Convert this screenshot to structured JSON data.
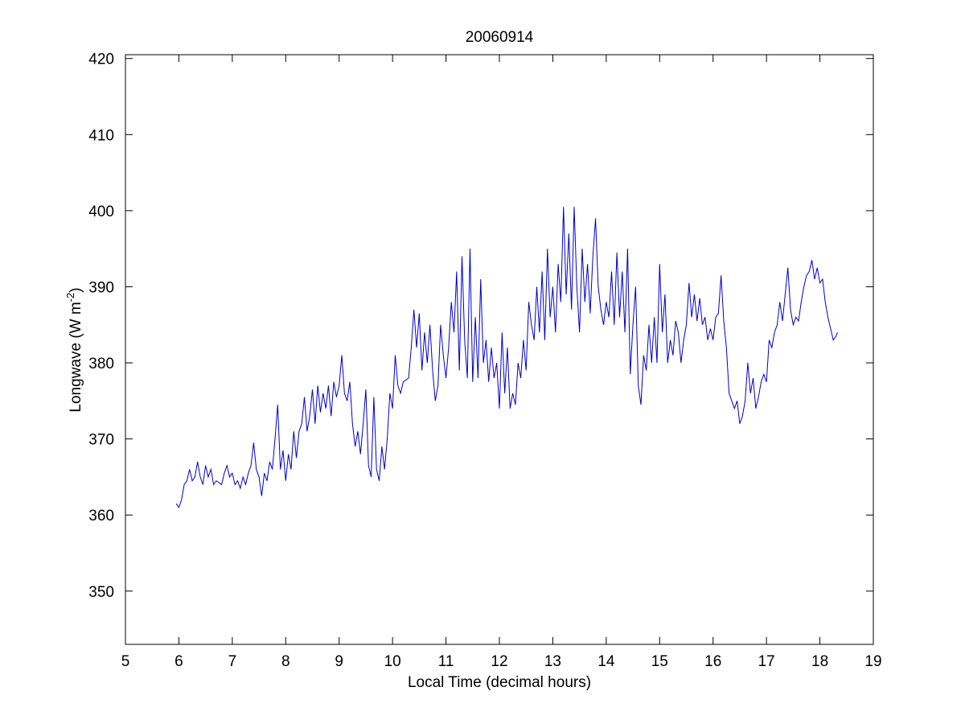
{
  "chart_data": {
    "type": "line",
    "title": "20060914",
    "xlabel": "Local Time (decimal hours)",
    "ylabel": {
      "text": "Longwave (W m",
      "superscript": "-2",
      "suffix": ")"
    },
    "xlim": [
      5,
      19
    ],
    "ylim": [
      343,
      420.5
    ],
    "xticks": [
      5,
      6,
      7,
      8,
      9,
      10,
      11,
      12,
      13,
      14,
      15,
      16,
      17,
      18,
      19
    ],
    "yticks": [
      350,
      360,
      370,
      380,
      390,
      400,
      410,
      420
    ],
    "grid": false,
    "x": [
      5.95,
      6.0,
      6.05,
      6.1,
      6.15,
      6.2,
      6.25,
      6.3,
      6.35,
      6.4,
      6.45,
      6.5,
      6.55,
      6.6,
      6.65,
      6.7,
      6.8,
      6.85,
      6.9,
      6.95,
      7.0,
      7.05,
      7.1,
      7.15,
      7.2,
      7.25,
      7.3,
      7.35,
      7.4,
      7.45,
      7.5,
      7.55,
      7.6,
      7.65,
      7.7,
      7.75,
      7.8,
      7.85,
      7.9,
      7.95,
      8.0,
      8.05,
      8.1,
      8.15,
      8.2,
      8.25,
      8.3,
      8.35,
      8.4,
      8.45,
      8.5,
      8.55,
      8.6,
      8.65,
      8.7,
      8.75,
      8.8,
      8.85,
      8.9,
      8.95,
      9.0,
      9.05,
      9.1,
      9.15,
      9.2,
      9.25,
      9.3,
      9.35,
      9.4,
      9.45,
      9.5,
      9.55,
      9.6,
      9.65,
      9.7,
      9.75,
      9.8,
      9.85,
      9.9,
      9.95,
      10.0,
      10.05,
      10.1,
      10.15,
      10.2,
      10.3,
      10.35,
      10.4,
      10.45,
      10.5,
      10.55,
      10.6,
      10.65,
      10.7,
      10.75,
      10.8,
      10.85,
      10.9,
      10.95,
      11.0,
      11.05,
      11.1,
      11.15,
      11.2,
      11.25,
      11.3,
      11.35,
      11.4,
      11.45,
      11.5,
      11.55,
      11.6,
      11.65,
      11.7,
      11.75,
      11.8,
      11.85,
      11.9,
      11.95,
      12.0,
      12.05,
      12.1,
      12.15,
      12.2,
      12.25,
      12.3,
      12.35,
      12.4,
      12.45,
      12.5,
      12.55,
      12.6,
      12.65,
      12.7,
      12.75,
      12.8,
      12.85,
      12.9,
      12.95,
      13.0,
      13.05,
      13.1,
      13.15,
      13.2,
      13.25,
      13.3,
      13.35,
      13.4,
      13.45,
      13.5,
      13.55,
      13.6,
      13.65,
      13.7,
      13.75,
      13.8,
      13.85,
      13.9,
      13.95,
      14.0,
      14.05,
      14.1,
      14.15,
      14.2,
      14.25,
      14.3,
      14.35,
      14.4,
      14.45,
      14.5,
      14.55,
      14.6,
      14.65,
      14.7,
      14.75,
      14.8,
      14.85,
      14.9,
      14.95,
      15.0,
      15.05,
      15.1,
      15.15,
      15.2,
      15.25,
      15.3,
      15.35,
      15.4,
      15.45,
      15.5,
      15.55,
      15.6,
      15.65,
      15.7,
      15.75,
      15.8,
      15.85,
      15.9,
      15.95,
      16.0,
      16.05,
      16.1,
      16.15,
      16.2,
      16.25,
      16.3,
      16.35,
      16.4,
      16.45,
      16.5,
      16.55,
      16.6,
      16.65,
      16.7,
      16.75,
      16.8,
      16.85,
      16.9,
      16.95,
      17.0,
      17.05,
      17.1,
      17.15,
      17.2,
      17.25,
      17.3,
      17.35,
      17.4,
      17.45,
      17.5,
      17.55,
      17.6,
      17.65,
      17.7,
      17.75,
      17.8,
      17.85,
      17.9,
      17.95,
      18.0,
      18.05,
      18.1,
      18.15,
      18.2,
      18.25,
      18.3,
      18.33
    ],
    "series": [
      {
        "color": "#0000cc",
        "values": [
          361.5,
          361,
          362,
          364,
          364.5,
          366,
          364.5,
          365,
          367,
          365,
          364,
          366.5,
          365,
          366,
          364,
          364.5,
          364,
          365.5,
          366.5,
          365,
          365.5,
          364,
          364.5,
          363.5,
          365,
          364,
          365.5,
          366.5,
          369.5,
          366,
          365,
          362.5,
          365.5,
          364.5,
          367,
          366,
          370,
          374.5,
          366,
          368.5,
          364.5,
          368,
          366,
          371,
          367.5,
          371,
          372,
          375.5,
          371,
          373,
          376.5,
          372,
          377,
          373.5,
          376,
          374,
          377,
          373,
          377.5,
          375.5,
          377,
          381,
          376,
          375,
          377.5,
          372,
          369,
          371,
          368,
          372,
          376.5,
          366.5,
          365,
          375.5,
          366,
          364.5,
          369,
          366,
          370,
          376,
          374,
          381,
          377,
          376,
          377.5,
          378,
          382,
          387,
          382,
          386.5,
          379,
          384,
          380,
          385,
          379,
          375,
          377,
          385,
          381,
          378,
          382,
          388,
          384,
          392,
          379,
          394,
          383,
          378,
          395,
          377.5,
          386,
          378,
          391,
          380,
          383,
          377.5,
          382,
          378,
          380,
          374,
          384,
          376,
          382,
          374,
          376,
          374.5,
          380,
          378,
          383,
          379,
          388,
          385,
          383,
          390,
          384,
          392,
          383,
          395,
          386,
          390,
          384,
          393,
          388,
          400.5,
          389,
          397,
          387,
          400.5,
          390,
          384,
          395,
          388,
          393,
          386.5,
          394,
          399,
          390,
          387,
          385,
          388,
          386,
          392,
          385,
          394.5,
          386,
          392,
          384,
          395,
          378.5,
          385,
          390,
          377,
          374.5,
          381,
          379,
          385,
          380,
          386,
          380,
          393,
          384,
          389,
          380,
          383,
          381,
          385.5,
          384,
          380,
          383,
          385,
          390.5,
          386,
          389,
          385.5,
          388.5,
          385,
          386,
          383,
          384.5,
          383,
          386,
          386.5,
          391.5,
          385.5,
          382,
          376,
          375,
          374,
          375,
          372,
          373,
          375,
          380,
          376,
          378,
          374,
          375.5,
          377.5,
          378.5,
          377.5,
          383,
          382,
          384,
          385,
          388,
          385.5,
          389,
          392.5,
          387,
          385,
          386,
          385.5,
          388,
          390,
          391.5,
          392,
          393.5,
          391,
          392.5,
          390.5,
          391,
          388,
          386,
          384.5,
          383,
          383.5,
          384
        ]
      }
    ]
  }
}
